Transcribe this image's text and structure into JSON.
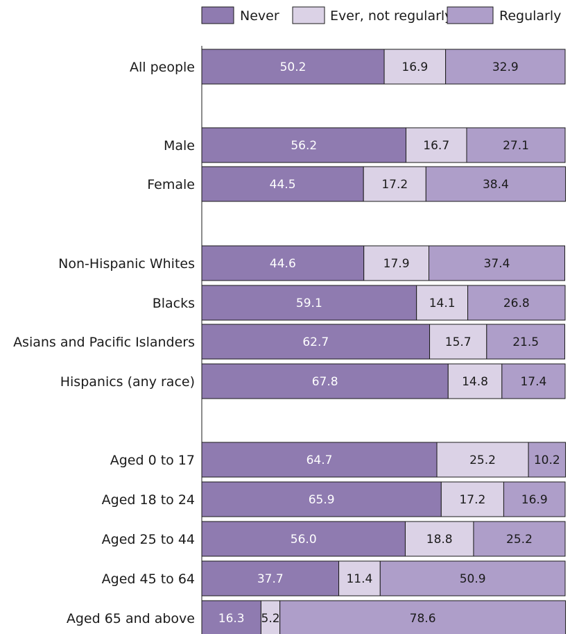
{
  "chart_data": {
    "type": "bar",
    "orientation": "horizontal",
    "stacked": true,
    "percent_stacked": true,
    "grid": false,
    "legend_position": "top",
    "title": "",
    "xlabel": "",
    "ylabel": "",
    "xlim": [
      0,
      100
    ],
    "categories": [
      "All people",
      "Male",
      "Female",
      "Non-Hispanic Whites",
      "Blacks",
      "Asians and Pacific Islanders",
      "Hispanics (any race)",
      "Aged 0 to 17",
      "Aged 18 to 24",
      "Aged 25 to 44",
      "Aged 45 to 64",
      "Aged 65 and above"
    ],
    "series": [
      {
        "name": "Never",
        "color": "#8f7bb0",
        "values": [
          50.2,
          56.2,
          44.5,
          44.6,
          59.1,
          62.7,
          67.8,
          64.7,
          65.9,
          56.0,
          37.7,
          16.3
        ]
      },
      {
        "name": "Ever, not regularly",
        "color": "#dbd2e6",
        "values": [
          16.9,
          16.7,
          17.2,
          17.9,
          14.1,
          15.7,
          14.8,
          25.2,
          17.2,
          18.8,
          11.4,
          5.2
        ]
      },
      {
        "name": "Regularly",
        "color": "#ae9ec9",
        "values": [
          32.9,
          27.1,
          38.4,
          37.4,
          26.8,
          21.5,
          17.4,
          10.2,
          16.9,
          25.2,
          50.9,
          78.6
        ]
      }
    ],
    "value_labels": [
      [
        "50.2",
        "16.9",
        "32.9"
      ],
      [
        "56.2",
        "16.7",
        "27.1"
      ],
      [
        "44.5",
        "17.2",
        "38.4"
      ],
      [
        "44.6",
        "17.9",
        "37.4"
      ],
      [
        "59.1",
        "14.1",
        "26.8"
      ],
      [
        "62.7",
        "15.7",
        "21.5"
      ],
      [
        "67.8",
        "14.8",
        "17.4"
      ],
      [
        "64.7",
        "25.2",
        "10.2"
      ],
      [
        "65.9",
        "17.2",
        "16.9"
      ],
      [
        "56.0",
        "18.8",
        "25.2"
      ],
      [
        "37.7",
        "11.4",
        "50.9"
      ],
      [
        "16.3",
        "5.2",
        "78.6"
      ]
    ],
    "groups": [
      [
        0
      ],
      [
        1,
        2
      ],
      [
        3,
        4,
        5,
        6
      ],
      [
        7,
        8,
        9,
        10,
        11
      ]
    ]
  }
}
